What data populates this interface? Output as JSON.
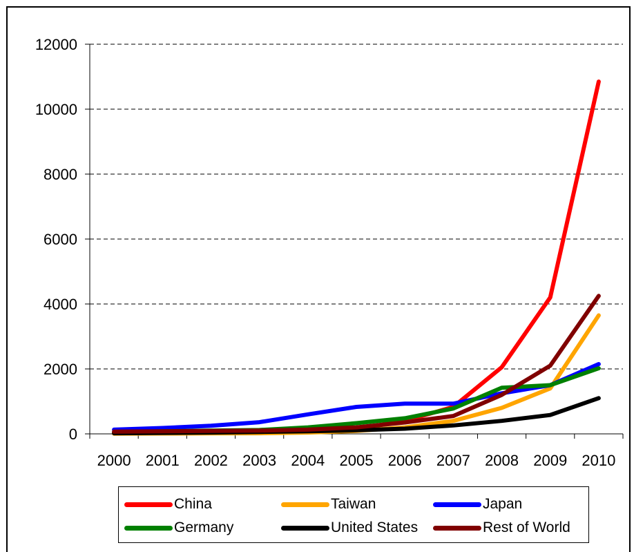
{
  "chart_data": {
    "type": "line",
    "title": "",
    "xlabel": "",
    "ylabel": "",
    "categories": [
      "2000",
      "2001",
      "2002",
      "2003",
      "2004",
      "2005",
      "2006",
      "2007",
      "2008",
      "2009",
      "2010"
    ],
    "ylim": [
      0,
      12000
    ],
    "yticks": [
      "0",
      "2000",
      "4000",
      "6000",
      "8000",
      "10000",
      "12000"
    ],
    "grid": "horizontal-dashed",
    "legend_position": "bottom",
    "series": [
      {
        "name": "China",
        "color": "#ff0000",
        "values": [
          40,
          60,
          70,
          80,
          100,
          150,
          400,
          830,
          2050,
          4200,
          10850
        ]
      },
      {
        "name": "Taiwan",
        "color": "#ffa500",
        "values": [
          5,
          10,
          15,
          20,
          40,
          90,
          200,
          400,
          800,
          1400,
          3650
        ]
      },
      {
        "name": "Japan",
        "color": "#0000ff",
        "values": [
          130,
          180,
          250,
          360,
          600,
          830,
          930,
          930,
          1250,
          1500,
          2150
        ]
      },
      {
        "name": "Germany",
        "color": "#008000",
        "values": [
          40,
          80,
          100,
          120,
          200,
          330,
          480,
          780,
          1420,
          1500,
          2020
        ]
      },
      {
        "name": "United States",
        "color": "#000000",
        "values": [
          20,
          30,
          40,
          60,
          80,
          110,
          160,
          260,
          400,
          580,
          1100
        ]
      },
      {
        "name": "Rest of World",
        "color": "#800000",
        "values": [
          70,
          80,
          90,
          100,
          130,
          200,
          350,
          550,
          1200,
          2100,
          4250
        ]
      }
    ]
  }
}
